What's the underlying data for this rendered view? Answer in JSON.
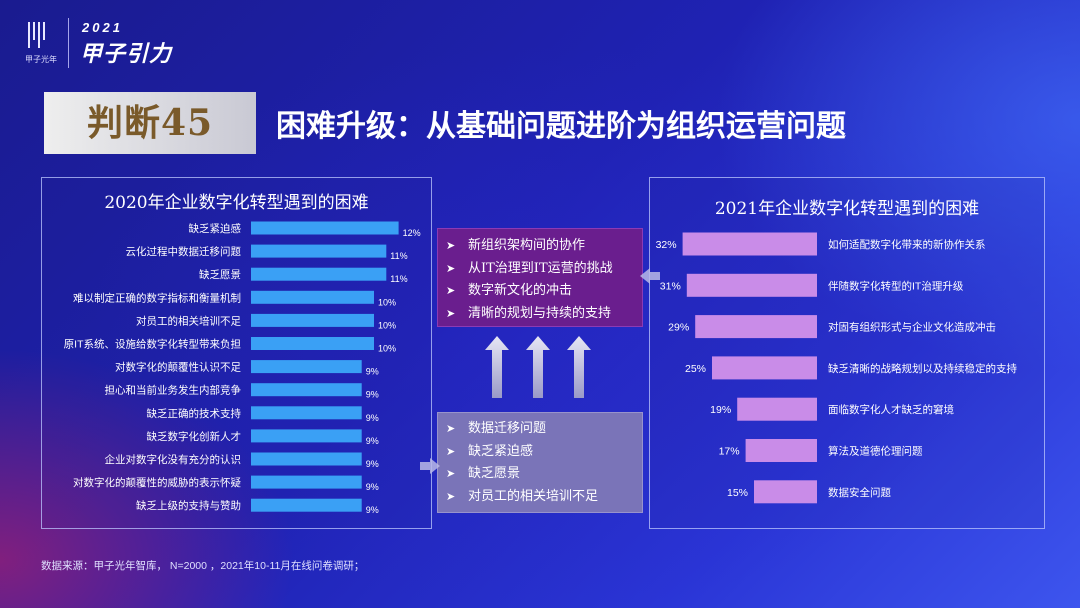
{
  "logo": {
    "brand_cn": "甲子光年",
    "year": "2021",
    "name": "甲子引力"
  },
  "heading": {
    "badge": "判断45",
    "title": "困难升级：从基础问题进阶为组织运营问题"
  },
  "colors": {
    "left_bar": "#3aa0f5",
    "right_bar": "#c98ce8",
    "top_box": "#6a1e8e",
    "bottom_box": "#7a74b8"
  },
  "chart_data": [
    {
      "type": "bar",
      "orientation": "horizontal",
      "title": "2020年企业数字化转型遇到的困难",
      "categories": [
        "缺乏紧迫感",
        "云化过程中数据迁移问题",
        "缺乏愿景",
        "难以制定正确的数字指标和衡量机制",
        "对员工的相关培训不足",
        "原IT系统、设施给数字化转型带来负担",
        "对数字化的颠覆性认识不足",
        "担心和当前业务发生内部竞争",
        "缺乏正确的技术支持",
        "缺乏数字化创新人才",
        "企业对数字化没有充分的认识",
        "对数字化的颠覆性的威胁的表示怀疑",
        "缺乏上级的支持与赞助"
      ],
      "values": [
        12,
        11,
        11,
        10,
        10,
        10,
        9,
        9,
        9,
        9,
        9,
        9,
        9
      ],
      "value_labels": [
        "12%",
        "11%",
        "11%",
        "10%",
        "10%",
        "10%",
        "9%",
        "9%",
        "9%",
        "9%",
        "9%",
        "9%",
        "9%"
      ],
      "unit": "%"
    },
    {
      "type": "bar",
      "orientation": "horizontal",
      "title": "2021年企业数字化转型遇到的困难",
      "categories": [
        "如何适配数字化带来的新协作关系",
        "伴随数字化转型的IT治理升级",
        "对固有组织形式与企业文化造成冲击",
        "缺乏清晰的战略规划以及持续稳定的支持",
        "面临数字化人才缺乏的窘境",
        "算法及道德伦理问题",
        "数据安全问题"
      ],
      "values": [
        32,
        31,
        29,
        25,
        19,
        17,
        15
      ],
      "value_labels": [
        "32%",
        "31%",
        "29%",
        "25%",
        "19%",
        "17%",
        "15%"
      ],
      "unit": "%"
    }
  ],
  "center": {
    "top_items": [
      "新组织架构间的协作",
      "从IT治理到IT运营的挑战",
      "数字新文化的冲击",
      "清晰的规划与持续的支持"
    ],
    "bottom_items": [
      "数据迁移问题",
      "缺乏紧迫感",
      "缺乏愿景",
      "对员工的相关培训不足"
    ],
    "bullet_icon": "chevron-right-icon",
    "arrow_icon": "arrow-up-icon"
  },
  "footer": {
    "source": "数据来源：甲子光年智库， N=2000 ，2021年10-11月在线问卷调研；"
  }
}
